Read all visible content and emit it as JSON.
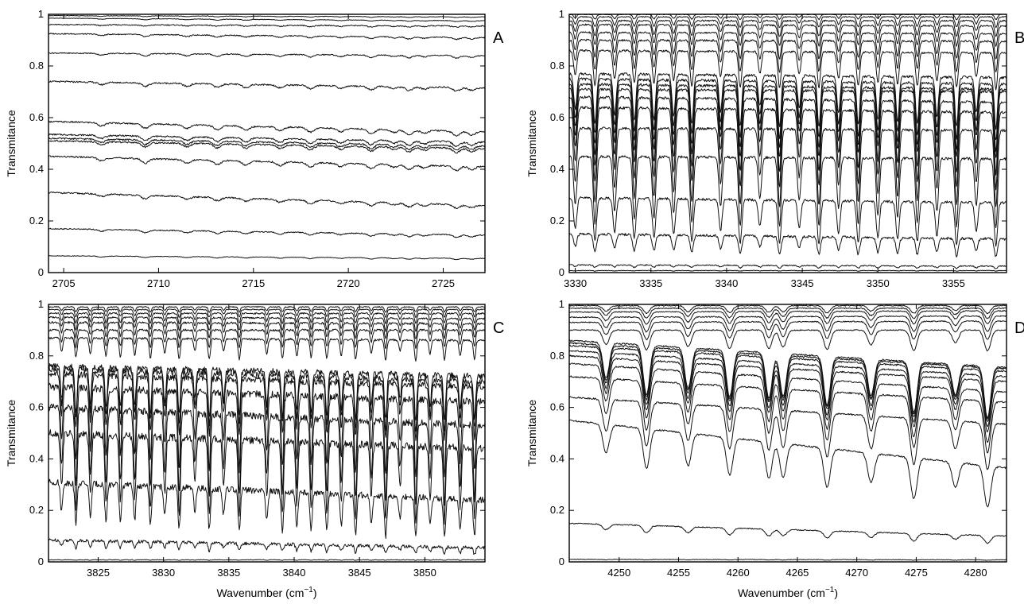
{
  "figure": {
    "panels": [
      {
        "letter": "A",
        "ylabel": "Transmitance",
        "xlabel": "",
        "xlim": [
          2704.2,
          2727.2
        ],
        "ylim": [
          0,
          1
        ],
        "xticks": [
          2705,
          2710,
          2715,
          2720,
          2725
        ],
        "yticks": [
          0,
          0.2,
          0.4,
          0.6,
          0.8,
          1
        ]
      },
      {
        "letter": "B",
        "ylabel": "Transmitance",
        "xlabel": "",
        "xlim": [
          3329.6,
          3358.5
        ],
        "ylim": [
          0,
          1
        ],
        "xticks": [
          3330,
          3335,
          3340,
          3345,
          3350,
          3355
        ],
        "yticks": [
          0,
          0.2,
          0.4,
          0.6,
          0.8,
          1
        ]
      },
      {
        "letter": "C",
        "ylabel": "Transmitance",
        "xlabel": "Wavenumber (cm",
        "xlabel_sup": "−1",
        "xlabel_end": ")",
        "xlim": [
          3821.2,
          3854.6
        ],
        "ylim": [
          0,
          1
        ],
        "xticks": [
          3825,
          3830,
          3835,
          3840,
          3845,
          3850
        ],
        "yticks": [
          0,
          0.2,
          0.4,
          0.6,
          0.8,
          1
        ]
      },
      {
        "letter": "D",
        "ylabel": "Transmitance",
        "xlabel": "Wavenumber (cm",
        "xlabel_sup": "−1",
        "xlabel_end": ")",
        "xlim": [
          4245.8,
          4282.6
        ],
        "ylim": [
          0,
          1
        ],
        "xticks": [
          4250,
          4255,
          4260,
          4265,
          4270,
          4275,
          4280
        ],
        "yticks": [
          0,
          0.2,
          0.4,
          0.6,
          0.8,
          1
        ]
      }
    ]
  },
  "chart_data": [
    {
      "type": "line",
      "panel": "A",
      "ylabel": "Transmitance",
      "xlim": [
        2704.2,
        2727.2
      ],
      "ylim": [
        0,
        1
      ],
      "grid": false,
      "line_color": "#111111",
      "series": [
        {
          "start": 0.995,
          "end": 0.99,
          "dip_depth": 0.003,
          "noise": 0.001
        },
        {
          "start": 0.985,
          "end": 0.975,
          "dip_depth": 0.004,
          "noise": 0.001
        },
        {
          "start": 0.96,
          "end": 0.955,
          "dip_depth": 0.005,
          "noise": 0.002
        },
        {
          "start": 0.925,
          "end": 0.91,
          "dip_depth": 0.008,
          "noise": 0.002
        },
        {
          "start": 0.85,
          "end": 0.84,
          "dip_depth": 0.01,
          "noise": 0.002
        },
        {
          "start": 0.74,
          "end": 0.715,
          "dip_depth": 0.014,
          "noise": 0.003
        },
        {
          "start": 0.585,
          "end": 0.545,
          "dip_depth": 0.018,
          "noise": 0.003
        },
        {
          "start": 0.535,
          "end": 0.505,
          "dip_depth": 0.018,
          "noise": 0.003
        },
        {
          "start": 0.52,
          "end": 0.49,
          "dip_depth": 0.018,
          "noise": 0.003
        },
        {
          "start": 0.51,
          "end": 0.48,
          "dip_depth": 0.018,
          "noise": 0.003
        },
        {
          "start": 0.45,
          "end": 0.41,
          "dip_depth": 0.018,
          "noise": 0.003
        },
        {
          "start": 0.31,
          "end": 0.26,
          "dip_depth": 0.014,
          "noise": 0.003
        },
        {
          "start": 0.17,
          "end": 0.145,
          "dip_depth": 0.01,
          "noise": 0.002
        },
        {
          "start": 0.065,
          "end": 0.055,
          "dip_depth": 0.005,
          "noise": 0.001
        }
      ],
      "lines": [
        2707.0,
        2709.3,
        2711.5,
        2713.1,
        2714.6,
        2716.4,
        2718.0,
        2719.6,
        2721.2,
        2722.4,
        2723.2,
        2724.0,
        2725.7,
        2726.5
      ]
    },
    {
      "type": "line",
      "panel": "B",
      "ylabel": "Transmitance",
      "xlim": [
        3329.6,
        3358.5
      ],
      "ylim": [
        0,
        1
      ],
      "grid": false,
      "line_color": "#111111",
      "series": [
        {
          "start": 1.0,
          "end": 1.0,
          "dip_depth": 0.02,
          "noise": 0.002
        },
        {
          "start": 0.99,
          "end": 0.99,
          "dip_depth": 0.04,
          "noise": 0.002
        },
        {
          "start": 0.975,
          "end": 0.975,
          "dip_depth": 0.06,
          "noise": 0.003
        },
        {
          "start": 0.96,
          "end": 0.955,
          "dip_depth": 0.08,
          "noise": 0.003
        },
        {
          "start": 0.93,
          "end": 0.925,
          "dip_depth": 0.1,
          "noise": 0.003
        },
        {
          "start": 0.9,
          "end": 0.895,
          "dip_depth": 0.12,
          "noise": 0.004
        },
        {
          "start": 0.86,
          "end": 0.85,
          "dip_depth": 0.14,
          "noise": 0.004
        },
        {
          "start": 0.77,
          "end": 0.755,
          "dip_depth": 0.2,
          "noise": 0.005
        },
        {
          "start": 0.75,
          "end": 0.73,
          "dip_depth": 0.22,
          "noise": 0.005
        },
        {
          "start": 0.73,
          "end": 0.71,
          "dip_depth": 0.24,
          "noise": 0.005
        },
        {
          "start": 0.71,
          "end": 0.7,
          "dip_depth": 0.26,
          "noise": 0.005
        },
        {
          "start": 0.68,
          "end": 0.66,
          "dip_depth": 0.28,
          "noise": 0.005
        },
        {
          "start": 0.64,
          "end": 0.62,
          "dip_depth": 0.3,
          "noise": 0.005
        },
        {
          "start": 0.56,
          "end": 0.55,
          "dip_depth": 0.3,
          "noise": 0.005
        },
        {
          "start": 0.45,
          "end": 0.44,
          "dip_depth": 0.27,
          "noise": 0.005
        },
        {
          "start": 0.29,
          "end": 0.27,
          "dip_depth": 0.17,
          "noise": 0.005
        },
        {
          "start": 0.15,
          "end": 0.13,
          "dip_depth": 0.07,
          "noise": 0.005
        },
        {
          "start": 0.03,
          "end": 0.025,
          "dip_depth": 0.01,
          "noise": 0.002
        },
        {
          "start": 0.008,
          "end": 0.008,
          "dip_depth": 0.002,
          "noise": 0.001
        }
      ],
      "lines": [
        3330.0,
        3331.3,
        3332.6,
        3333.9,
        3335.2,
        3336.5,
        3337.7,
        3339.6,
        3340.9,
        3342.2,
        3343.5,
        3344.8,
        3346.1,
        3347.4,
        3348.7,
        3350.0,
        3351.3,
        3352.6,
        3353.9,
        3355.2,
        3356.5,
        3357.8
      ]
    },
    {
      "type": "line",
      "panel": "C",
      "ylabel": "Transmitance",
      "xlabel": "Wavenumber (cm−1)",
      "xlim": [
        3821.2,
        3854.6
      ],
      "ylim": [
        0,
        1
      ],
      "grid": false,
      "line_color": "#111111",
      "series": [
        {
          "start": 0.99,
          "end": 0.99,
          "dip_depth": 0.02,
          "noise": 0.002
        },
        {
          "start": 0.98,
          "end": 0.98,
          "dip_depth": 0.03,
          "noise": 0.002
        },
        {
          "start": 0.965,
          "end": 0.965,
          "dip_depth": 0.04,
          "noise": 0.003
        },
        {
          "start": 0.95,
          "end": 0.945,
          "dip_depth": 0.05,
          "noise": 0.003
        },
        {
          "start": 0.93,
          "end": 0.925,
          "dip_depth": 0.06,
          "noise": 0.004
        },
        {
          "start": 0.9,
          "end": 0.9,
          "dip_depth": 0.07,
          "noise": 0.004
        },
        {
          "start": 0.87,
          "end": 0.86,
          "dip_depth": 0.08,
          "noise": 0.004
        },
        {
          "start": 0.76,
          "end": 0.72,
          "dip_depth": 0.18,
          "noise": 0.012
        },
        {
          "start": 0.75,
          "end": 0.7,
          "dip_depth": 0.2,
          "noise": 0.012
        },
        {
          "start": 0.73,
          "end": 0.68,
          "dip_depth": 0.22,
          "noise": 0.012
        },
        {
          "start": 0.68,
          "end": 0.62,
          "dip_depth": 0.3,
          "noise": 0.014
        },
        {
          "start": 0.6,
          "end": 0.53,
          "dip_depth": 0.32,
          "noise": 0.014
        },
        {
          "start": 0.5,
          "end": 0.44,
          "dip_depth": 0.3,
          "noise": 0.014
        },
        {
          "start": 0.31,
          "end": 0.24,
          "dip_depth": 0.16,
          "noise": 0.012
        },
        {
          "start": 0.085,
          "end": 0.055,
          "dip_depth": 0.03,
          "noise": 0.006
        },
        {
          "start": 0.008,
          "end": 0.008,
          "dip_depth": 0.002,
          "noise": 0.001
        }
      ],
      "lines": [
        3822.2,
        3823.3,
        3824.4,
        3825.6,
        3826.7,
        3827.8,
        3829.0,
        3830.1,
        3831.2,
        3832.4,
        3833.5,
        3834.6,
        3835.8,
        3837.9,
        3839.1,
        3840.2,
        3841.3,
        3842.5,
        3843.6,
        3844.7,
        3845.9,
        3847.0,
        3848.1,
        3849.3,
        3850.4,
        3851.5,
        3852.7,
        3853.8
      ]
    },
    {
      "type": "line",
      "panel": "D",
      "ylabel": "Transmitance",
      "xlabel": "Wavenumber (cm−1)",
      "xlim": [
        4245.8,
        4282.6
      ],
      "ylim": [
        0,
        1
      ],
      "grid": false,
      "line_color": "#111111",
      "series": [
        {
          "start": 0.995,
          "end": 0.995,
          "dip_depth": 0.03,
          "noise": 0.002
        },
        {
          "start": 0.985,
          "end": 0.985,
          "dip_depth": 0.04,
          "noise": 0.002
        },
        {
          "start": 0.97,
          "end": 0.975,
          "dip_depth": 0.05,
          "noise": 0.002
        },
        {
          "start": 0.95,
          "end": 0.955,
          "dip_depth": 0.06,
          "noise": 0.002
        },
        {
          "start": 0.93,
          "end": 0.935,
          "dip_depth": 0.07,
          "noise": 0.002
        },
        {
          "start": 0.9,
          "end": 0.9,
          "dip_depth": 0.08,
          "noise": 0.002
        },
        {
          "start": 0.86,
          "end": 0.755,
          "dip_depth": 0.2,
          "noise": 0.003
        },
        {
          "start": 0.85,
          "end": 0.75,
          "dip_depth": 0.2,
          "noise": 0.003
        },
        {
          "start": 0.84,
          "end": 0.74,
          "dip_depth": 0.2,
          "noise": 0.003
        },
        {
          "start": 0.82,
          "end": 0.72,
          "dip_depth": 0.2,
          "noise": 0.003
        },
        {
          "start": 0.8,
          "end": 0.7,
          "dip_depth": 0.2,
          "noise": 0.003
        },
        {
          "start": 0.77,
          "end": 0.66,
          "dip_depth": 0.2,
          "noise": 0.003
        },
        {
          "start": 0.72,
          "end": 0.62,
          "dip_depth": 0.2,
          "noise": 0.003
        },
        {
          "start": 0.64,
          "end": 0.535,
          "dip_depth": 0.18,
          "noise": 0.003
        },
        {
          "start": 0.55,
          "end": 0.365,
          "dip_depth": 0.16,
          "noise": 0.003
        },
        {
          "start": 0.15,
          "end": 0.1,
          "dip_depth": 0.03,
          "noise": 0.002
        },
        {
          "start": 0.01,
          "end": 0.008,
          "dip_depth": 0.002,
          "noise": 0.001
        }
      ],
      "lines": [
        4248.9,
        4252.3,
        4255.8,
        4259.3,
        4262.6,
        4263.8,
        4267.5,
        4271.2,
        4274.8,
        4278.3,
        4281.0
      ]
    }
  ]
}
